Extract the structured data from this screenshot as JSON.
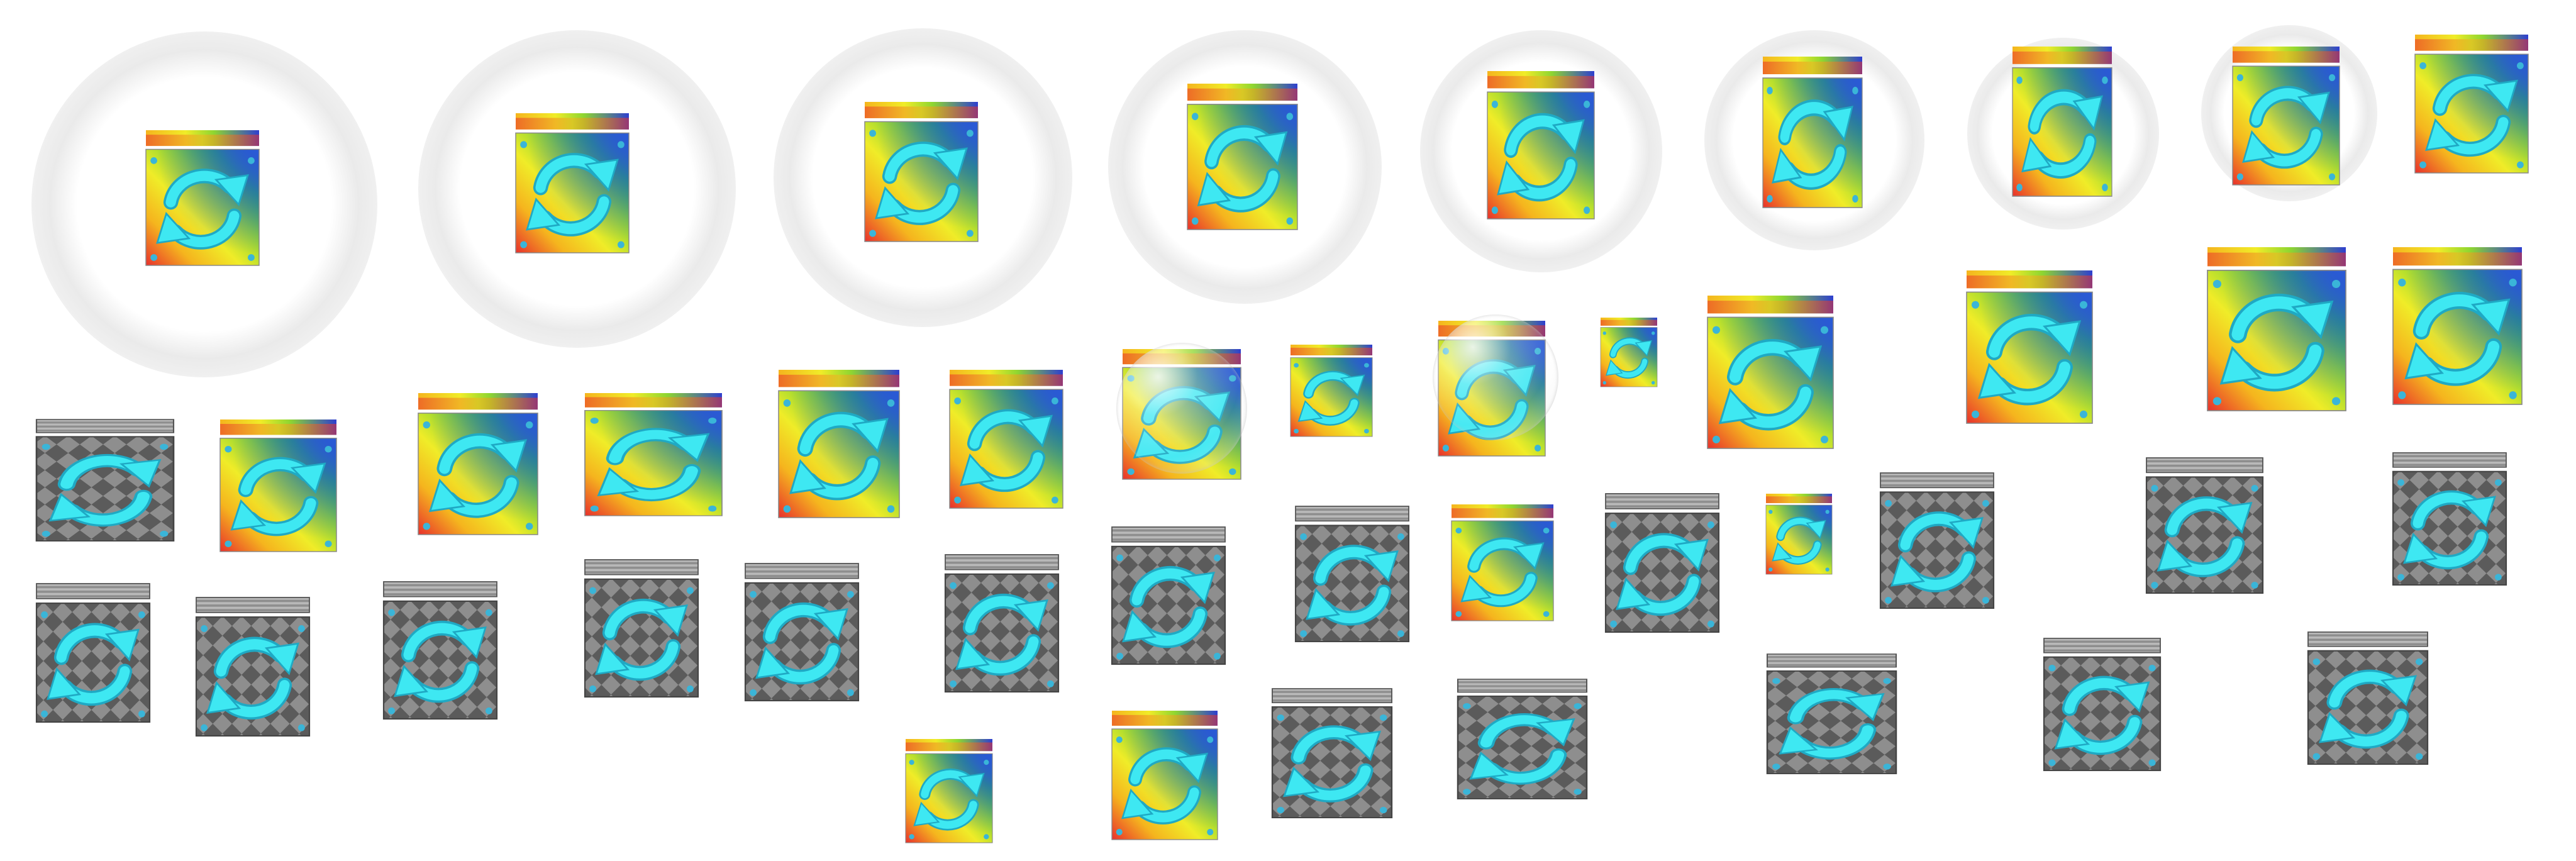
{
  "icon": {
    "name": "refresh-icon",
    "arrow_color": "#3ee8f2",
    "arrow_stroke": "#1fa9c4"
  },
  "themes": {
    "rainbow": {
      "colors": [
        "#e8302c",
        "#f5b51e",
        "#f0ec28",
        "#8ed631",
        "#27b24b",
        "#2a5ad6",
        "#2e3fcf"
      ],
      "corner_dot": "#3ab5d8"
    },
    "checker": {
      "colors": [
        "#8e8e8e",
        "#5b5b5b",
        "#b9b9b9"
      ],
      "corner_dot": "#3ab5d8"
    }
  },
  "sprites": [
    {
      "theme": "rainbow",
      "halo": "ring"
    },
    {
      "theme": "rainbow",
      "halo": "ring"
    },
    {
      "theme": "rainbow",
      "halo": "ring"
    },
    {
      "theme": "rainbow",
      "halo": "ring"
    },
    {
      "theme": "rainbow",
      "halo": "ring"
    },
    {
      "theme": "rainbow",
      "halo": "ring"
    },
    {
      "theme": "rainbow",
      "halo": "ring"
    },
    {
      "theme": "rainbow",
      "halo": "ring"
    },
    {
      "theme": "rainbow",
      "halo": "none"
    },
    {
      "theme": "rainbow",
      "halo": "bubble"
    },
    {
      "theme": "rainbow",
      "halo": "none"
    },
    {
      "theme": "rainbow",
      "halo": "bubble"
    },
    {
      "theme": "rainbow",
      "halo": "none"
    },
    {
      "theme": "rainbow",
      "halo": "none"
    },
    {
      "theme": "rainbow",
      "halo": "none"
    },
    {
      "theme": "rainbow",
      "halo": "none"
    },
    {
      "theme": "rainbow",
      "halo": "none"
    },
    {
      "theme": "checker",
      "halo": "none"
    },
    {
      "theme": "rainbow",
      "halo": "none"
    },
    {
      "theme": "rainbow",
      "halo": "none"
    },
    {
      "theme": "rainbow",
      "halo": "none"
    },
    {
      "theme": "rainbow",
      "halo": "none"
    },
    {
      "theme": "rainbow",
      "halo": "none"
    },
    {
      "theme": "checker",
      "halo": "none"
    },
    {
      "theme": "checker",
      "halo": "none"
    },
    {
      "theme": "rainbow",
      "halo": "none"
    },
    {
      "theme": "checker",
      "halo": "none"
    },
    {
      "theme": "rainbow",
      "halo": "none"
    },
    {
      "theme": "checker",
      "halo": "none"
    },
    {
      "theme": "checker",
      "halo": "none"
    },
    {
      "theme": "checker",
      "halo": "none"
    },
    {
      "theme": "checker",
      "halo": "none"
    },
    {
      "theme": "checker",
      "halo": "none"
    },
    {
      "theme": "checker",
      "halo": "none"
    },
    {
      "theme": "checker",
      "halo": "none"
    },
    {
      "theme": "checker",
      "halo": "none"
    },
    {
      "theme": "checker",
      "halo": "none"
    },
    {
      "theme": "rainbow",
      "halo": "none"
    },
    {
      "theme": "rainbow",
      "halo": "none"
    },
    {
      "theme": "checker",
      "halo": "none"
    },
    {
      "theme": "checker",
      "halo": "none"
    },
    {
      "theme": "checker",
      "halo": "none"
    },
    {
      "theme": "checker",
      "halo": "none"
    },
    {
      "theme": "checker",
      "halo": "none"
    }
  ]
}
